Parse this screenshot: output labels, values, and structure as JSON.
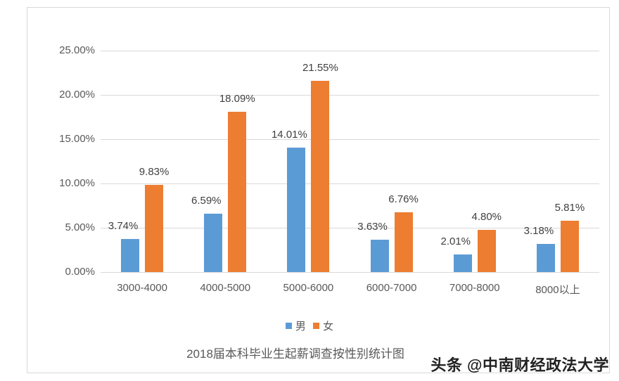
{
  "chart_data": {
    "type": "bar",
    "title": "2018届本科毕业生起薪调查按性别统计图",
    "xlabel": "",
    "ylabel": "",
    "categories": [
      "3000-4000",
      "4000-5000",
      "5000-6000",
      "6000-7000",
      "7000-8000",
      "8000以上"
    ],
    "series": [
      {
        "name": "男",
        "color": "#5b9bd5",
        "values": [
          3.74,
          6.59,
          14.01,
          3.63,
          2.01,
          3.18
        ],
        "labels": [
          "3.74%",
          "6.59%",
          "14.01%",
          "3.63%",
          "2.01%",
          "3.18%"
        ]
      },
      {
        "name": "女",
        "color": "#ed7d31",
        "values": [
          9.83,
          18.09,
          21.55,
          6.76,
          4.8,
          5.81
        ],
        "labels": [
          "9.83%",
          "18.09%",
          "21.55%",
          "6.76%",
          "4.80%",
          "5.81%"
        ]
      }
    ],
    "ylim": [
      0,
      25
    ],
    "yticks": [
      "0.00%",
      "5.00%",
      "10.00%",
      "15.00%",
      "20.00%",
      "25.00%"
    ],
    "grid": true,
    "legend_position": "bottom"
  },
  "legend": {
    "male": "男",
    "female": "女"
  },
  "watermark": "头条 @中南财经政法大学"
}
